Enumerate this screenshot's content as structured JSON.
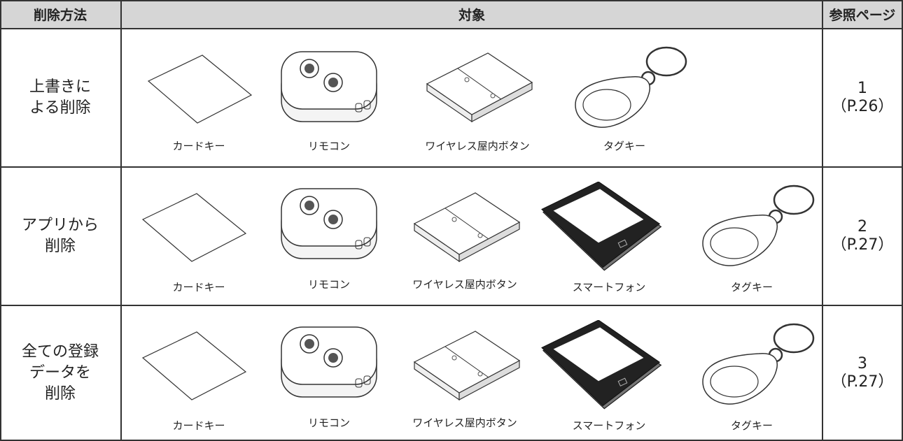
{
  "header": {
    "method": "削除方法",
    "target": "対象",
    "reference": "参照ページ"
  },
  "rows": [
    {
      "method": [
        "上書きに",
        "よる削除"
      ],
      "items": [
        "カードキー",
        "リモコン",
        "ワイヤレス屋内ボタン",
        "タグキー"
      ],
      "reference": {
        "number": 1,
        "page": "（P.26）"
      }
    },
    {
      "method": [
        "アプリから",
        "削除"
      ],
      "items": [
        "カードキー",
        "リモコン",
        "ワイヤレス屋内ボタン",
        "スマートフォン",
        "タグキー"
      ],
      "reference": {
        "number": 2,
        "page": "（P.27）"
      }
    },
    {
      "method": [
        "全ての登録",
        "データを",
        "削除"
      ],
      "items": [
        "カードキー",
        "リモコン",
        "ワイヤレス屋内ボタン",
        "スマートフォン",
        "タグキー"
      ],
      "reference": {
        "number": 3,
        "page": "（P.27）"
      }
    }
  ]
}
